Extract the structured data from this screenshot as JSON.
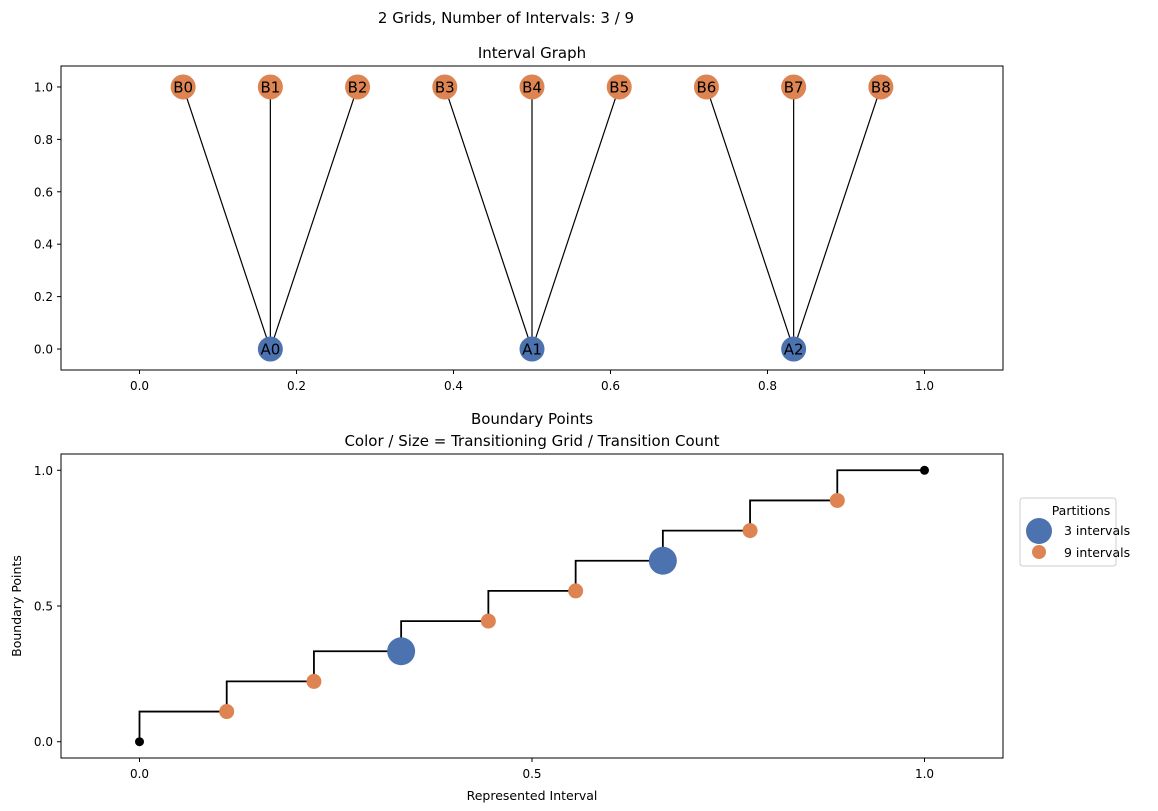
{
  "figure": {
    "suptitle": "2 Grids, Number of Intervals: 3 / 9"
  },
  "chart_data": [
    {
      "type": "scatter",
      "title": "Interval Graph",
      "xlabel": "",
      "ylabel": "",
      "xlim": [
        -0.1,
        1.1
      ],
      "ylim": [
        -0.08,
        1.08
      ],
      "xticks": [
        0.0,
        0.2,
        0.4,
        0.6,
        0.8,
        1.0
      ],
      "xtick_labels": [
        "0.0",
        "0.2",
        "0.4",
        "0.6",
        "0.8",
        "1.0"
      ],
      "yticks": [
        0.0,
        0.2,
        0.4,
        0.6,
        0.8,
        1.0
      ],
      "ytick_labels": [
        "0.0",
        "0.2",
        "0.4",
        "0.6",
        "0.8",
        "1.0"
      ],
      "grid": false,
      "nodes": [
        {
          "label": "A0",
          "x": 0.1667,
          "y": 0,
          "color": "#4c72b0"
        },
        {
          "label": "A1",
          "x": 0.5,
          "y": 0,
          "color": "#4c72b0"
        },
        {
          "label": "A2",
          "x": 0.8333,
          "y": 0,
          "color": "#4c72b0"
        },
        {
          "label": "B0",
          "x": 0.0556,
          "y": 1,
          "color": "#dd8452"
        },
        {
          "label": "B1",
          "x": 0.1667,
          "y": 1,
          "color": "#dd8452"
        },
        {
          "label": "B2",
          "x": 0.2778,
          "y": 1,
          "color": "#dd8452"
        },
        {
          "label": "B3",
          "x": 0.3889,
          "y": 1,
          "color": "#dd8452"
        },
        {
          "label": "B4",
          "x": 0.5,
          "y": 1,
          "color": "#dd8452"
        },
        {
          "label": "B5",
          "x": 0.6111,
          "y": 1,
          "color": "#dd8452"
        },
        {
          "label": "B6",
          "x": 0.7222,
          "y": 1,
          "color": "#dd8452"
        },
        {
          "label": "B7",
          "x": 0.8333,
          "y": 1,
          "color": "#dd8452"
        },
        {
          "label": "B8",
          "x": 0.9444,
          "y": 1,
          "color": "#dd8452"
        }
      ],
      "edges": [
        [
          "A0",
          "B0"
        ],
        [
          "A0",
          "B1"
        ],
        [
          "A0",
          "B2"
        ],
        [
          "A1",
          "B3"
        ],
        [
          "A1",
          "B4"
        ],
        [
          "A1",
          "B5"
        ],
        [
          "A2",
          "B6"
        ],
        [
          "A2",
          "B7"
        ],
        [
          "A2",
          "B8"
        ]
      ]
    },
    {
      "type": "scatter",
      "title": "Boundary Points\nColor / Size = Transitioning Grid / Transition Count",
      "xlabel": "Represented Interval",
      "ylabel": "Boundary Points",
      "xlim": [
        -0.1,
        1.1
      ],
      "ylim": [
        -0.06,
        1.06
      ],
      "xticks": [
        0.0,
        0.5,
        1.0
      ],
      "xtick_labels": [
        "0.0",
        "0.5",
        "1.0"
      ],
      "yticks": [
        0.0,
        0.5,
        1.0
      ],
      "ytick_labels": [
        "0.0",
        "0.5",
        "1.0"
      ],
      "grid": false,
      "step_line": {
        "color": "#000000",
        "x": [
          0,
          0.1111,
          0.2222,
          0.3333,
          0.4444,
          0.5556,
          0.6667,
          0.7778,
          0.8889,
          1.0
        ],
        "y": [
          0,
          0.1111,
          0.2222,
          0.3333,
          0.4444,
          0.5556,
          0.6667,
          0.7778,
          0.8889,
          1.0
        ]
      },
      "endpoints": [
        {
          "x": 0.0,
          "y": 0.0,
          "color": "#000000"
        },
        {
          "x": 1.0,
          "y": 1.0,
          "color": "#000000"
        }
      ],
      "series": [
        {
          "name": "3 intervals",
          "color": "#4c72b0",
          "points": [
            {
              "x": 0.3333,
              "y": 0.3333
            },
            {
              "x": 0.6667,
              "y": 0.6667
            }
          ]
        },
        {
          "name": "9 intervals",
          "color": "#dd8452",
          "points": [
            {
              "x": 0.1111,
              "y": 0.1111
            },
            {
              "x": 0.2222,
              "y": 0.2222
            },
            {
              "x": 0.4444,
              "y": 0.4444
            },
            {
              "x": 0.5556,
              "y": 0.5556
            },
            {
              "x": 0.7778,
              "y": 0.7778
            },
            {
              "x": 0.8889,
              "y": 0.8889
            }
          ]
        }
      ],
      "legend": {
        "title": "Partitions",
        "placement": "outside-right"
      }
    }
  ]
}
